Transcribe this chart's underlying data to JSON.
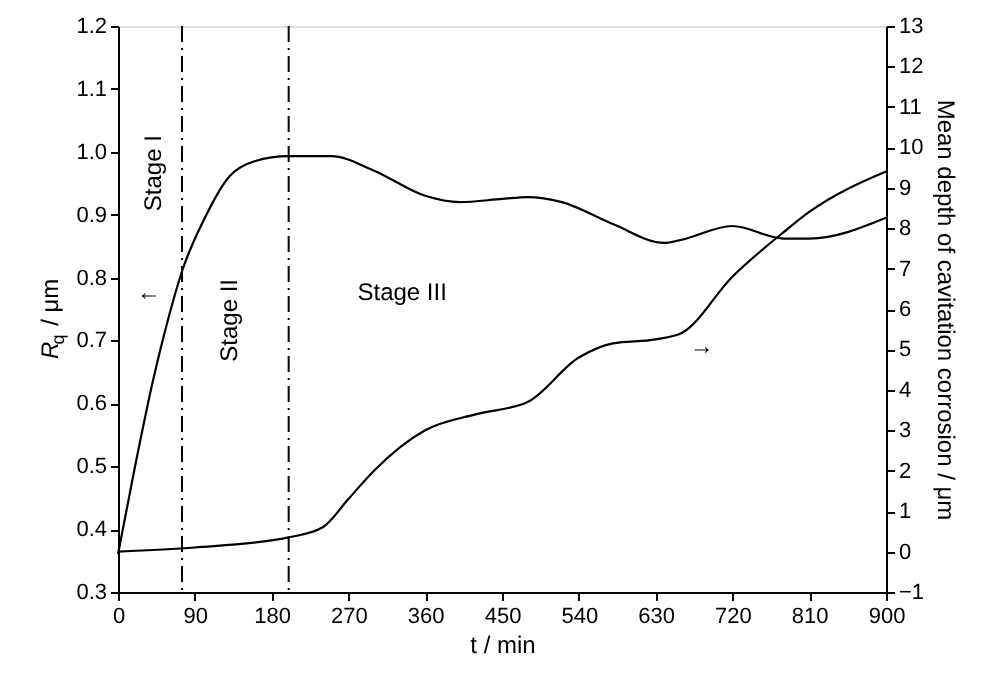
{
  "chart_data": {
    "type": "line",
    "xlabel": "t / min",
    "ylabel": "R$_{q}$ / μm",
    "y2label": "Mean depth of cavitation corrosion / μm",
    "xlim": [
      0,
      900
    ],
    "xticks": [
      0,
      90,
      180,
      270,
      360,
      450,
      540,
      630,
      720,
      810,
      900
    ],
    "ylim": [
      0.3,
      1.2
    ],
    "yticks": [
      0.3,
      0.4,
      0.5,
      0.6,
      0.7,
      0.8,
      0.9,
      {
        "value": 1.0,
        "label": "1.0"
      },
      1.1,
      1.2
    ],
    "y2lim": [
      -1,
      13
    ],
    "y2ticks": [
      -1,
      0,
      1,
      2,
      3,
      4,
      5,
      6,
      7,
      8,
      9,
      10,
      11,
      12,
      13
    ],
    "grid": false,
    "marker": "none",
    "line_style": "solid",
    "series": [
      {
        "color": "#000000",
        "x": [
          0,
          20,
          40,
          60,
          75,
          100,
          130,
          160,
          200,
          250,
          300,
          360,
          400,
          450,
          480,
          520,
          580,
          640,
          660,
          720,
          780,
          810,
          900
        ],
        "values": [
          0.36,
          0.5,
          0.63,
          0.74,
          0.81,
          0.89,
          0.96,
          0.985,
          0.993,
          0.993,
          0.97,
          0.93,
          0.92,
          0.925,
          0.928,
          0.92,
          0.885,
          0.855,
          0.86,
          0.882,
          0.862,
          0.862,
          0.895
        ]
      },
      {
        "color": "#000000",
        "axis": "y2",
        "x": [
          0,
          90,
          200,
          240,
          270,
          300,
          360,
          420,
          480,
          540,
          580,
          630,
          660,
          720,
          780,
          810,
          900
        ],
        "values": [
          0.0,
          0.1,
          0.35,
          0.6,
          1.3,
          2.0,
          3.0,
          3.4,
          3.7,
          4.8,
          5.15,
          5.25,
          5.4,
          6.8,
          7.9,
          8.4,
          9.4
        ]
      }
    ],
    "ref_lines": [
      {
        "axis": "x",
        "value": 75,
        "line_style": "dashdot",
        "color": "#000000"
      },
      {
        "axis": "x",
        "value": 200,
        "line_style": "dashdot",
        "color": "#000000"
      }
    ],
    "annotations": [
      "Stage I",
      "Stage II",
      "Stage III",
      "←",
      "→"
    ]
  }
}
